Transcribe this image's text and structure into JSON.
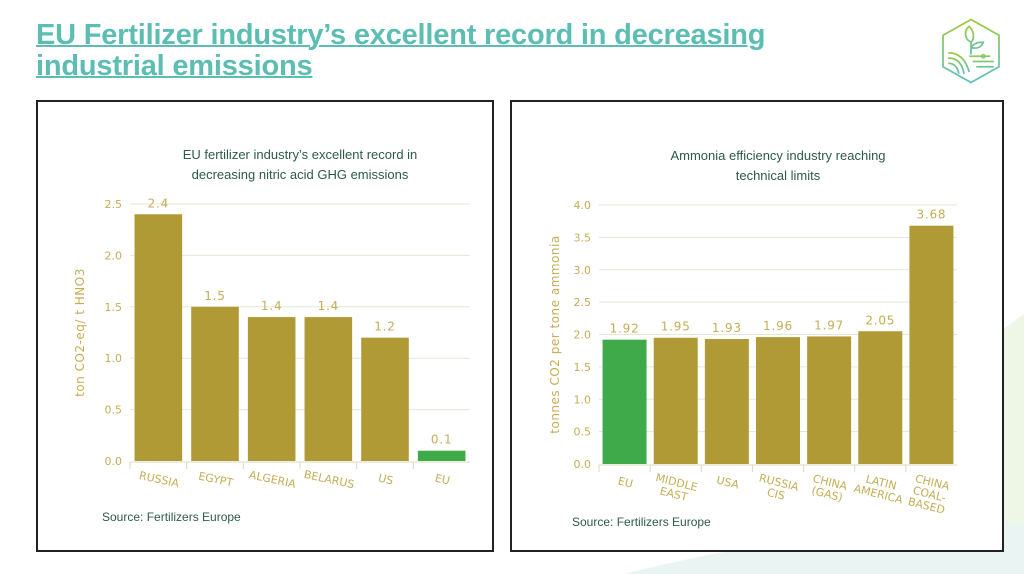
{
  "page": {
    "title_line1": "EU Fertilizer industry’s excellent record in decreasing",
    "title_line2": "industrial emissions",
    "logo": "leaf-field-hexagon-logo"
  },
  "colors": {
    "title": "#5cbdb3",
    "bar": "#b09a35",
    "eu_bar": "#3faa4a",
    "chart_title": "#2e5a4a",
    "axis_text": "#c4ad55"
  },
  "chart_data": [
    {
      "type": "bar",
      "title_line1": "EU fertilizer industry’s excellent record in",
      "title_line2": "decreasing nitric acid GHG emissions",
      "ylabel": "ton CO2-eq/ t HNO3",
      "categories": [
        "RUSSIA",
        "EGYPT",
        "ALGERIA",
        "BELARUS",
        "US",
        "EU"
      ],
      "values": [
        2.4,
        1.5,
        1.4,
        1.4,
        1.2,
        0.1
      ],
      "data_labels": [
        "2.4",
        "1.5",
        "1.4",
        "1.4",
        "1.2",
        "0.1"
      ],
      "highlight": "EU",
      "ylim": [
        0,
        2.5
      ],
      "yticks": [
        "0.0",
        "0.5",
        "1.0",
        "1.5",
        "2.0",
        "2.5"
      ],
      "grid": true,
      "source": "Source: Fertilizers Europe"
    },
    {
      "type": "bar",
      "title_line1": "Ammonia efficiency industry reaching",
      "title_line2": "technical limits",
      "ylabel": "tonnes CO2 per tone ammonia",
      "categories": [
        [
          "EU"
        ],
        [
          "MIDDLE",
          "EAST"
        ],
        [
          "USA"
        ],
        [
          "RUSSIA",
          "CIS"
        ],
        [
          "CHINA",
          "(GAS)"
        ],
        [
          "LATIN",
          "AMERICA"
        ],
        [
          "CHINA",
          "COAL-",
          "BASED"
        ]
      ],
      "values": [
        1.92,
        1.95,
        1.93,
        1.96,
        1.97,
        2.05,
        3.68
      ],
      "data_labels": [
        "1.92",
        "1.95",
        "1.93",
        "1.96",
        "1.97",
        "2.05",
        "3.68"
      ],
      "highlight": "EU",
      "ylim": [
        0,
        4.0
      ],
      "yticks": [
        "0.0",
        "0.5",
        "1.0",
        "1.5",
        "2.0",
        "2.5",
        "3.0",
        "3.5",
        "4.0"
      ],
      "grid": true,
      "source": "Source: Fertilizers Europe"
    }
  ]
}
